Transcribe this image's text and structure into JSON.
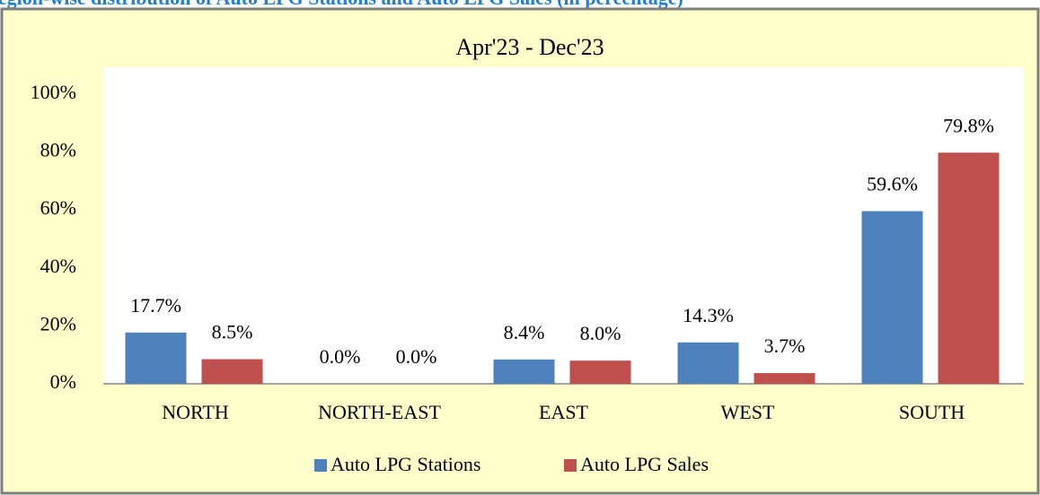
{
  "caption": "Region-wise distribution of Auto LPG Stations and Auto LPG Sales (in percentage)",
  "chart_data": {
    "type": "bar",
    "title": "Apr'23 - Dec'23",
    "categories": [
      "NORTH",
      "NORTH-EAST",
      "EAST",
      "WEST",
      "SOUTH"
    ],
    "series": [
      {
        "name": "Auto LPG Stations",
        "color": "#4f81bd",
        "values": [
          17.7,
          0.0,
          8.4,
          14.3,
          59.6
        ],
        "value_labels": [
          "17.7%",
          "0.0%",
          "8.4%",
          "14.3%",
          "59.6%"
        ]
      },
      {
        "name": "Auto LPG Sales",
        "color": "#c0504d",
        "values": [
          8.5,
          0.0,
          8.0,
          3.7,
          79.8
        ],
        "value_labels": [
          "8.5%",
          "0.0%",
          "8.0%",
          "3.7%",
          "79.8%"
        ]
      }
    ],
    "ylim": [
      0,
      100
    ],
    "yticks": [
      {
        "value": 0,
        "label": "0%"
      },
      {
        "value": 20,
        "label": "20%"
      },
      {
        "value": 40,
        "label": "40%"
      },
      {
        "value": 60,
        "label": "60%"
      },
      {
        "value": 80,
        "label": "80%"
      },
      {
        "value": 100,
        "label": "100%"
      }
    ],
    "legend": "bottom"
  }
}
